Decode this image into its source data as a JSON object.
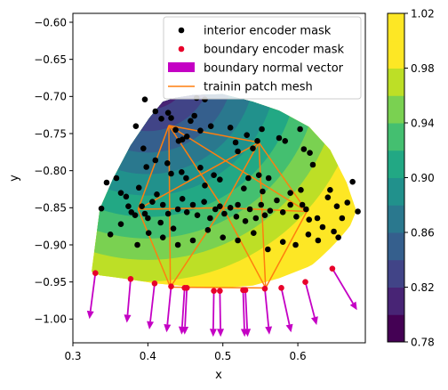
{
  "chart_data": {
    "type": "scatter",
    "xlabel": "x",
    "ylabel": "y",
    "xlim": [
      0.3,
      0.69
    ],
    "ylim": [
      -1.032,
      -0.588
    ],
    "xticks": [
      "0.3",
      "0.4",
      "0.5",
      "0.6"
    ],
    "xtick_values": [
      0.3,
      0.4,
      0.5,
      0.6
    ],
    "yticks": [
      "−0.60",
      "−0.65",
      "−0.70",
      "−0.75",
      "−0.80",
      "−0.85",
      "−0.90",
      "−0.95",
      "−1.00"
    ],
    "ytick_values": [
      -0.6,
      -0.65,
      -0.7,
      -0.75,
      -0.8,
      -0.85,
      -0.9,
      -0.95,
      -1.0
    ],
    "legend": {
      "placement": "upper right",
      "entries": [
        {
          "label": "interior encoder mask",
          "marker": "dot",
          "color": "#000000"
        },
        {
          "label": "boundary encoder mask",
          "marker": "dot",
          "color": "#e8002a"
        },
        {
          "label": "boundary normal vector",
          "marker": "rect",
          "color": "#c400c4"
        },
        {
          "label": "trainin patch mesh",
          "marker": "line",
          "color": "#ff7f0e"
        }
      ]
    },
    "colorbar": {
      "ticks": [
        "0.78",
        "0.82",
        "0.86",
        "0.90",
        "0.94",
        "0.98",
        "1.02"
      ],
      "tick_values": [
        0.78,
        0.82,
        0.86,
        0.9,
        0.94,
        0.98,
        1.02
      ],
      "min": 0.78,
      "max": 1.02,
      "levels": [
        0.78,
        0.8,
        0.82,
        0.84,
        0.86,
        0.88,
        0.9,
        0.92,
        0.94,
        0.96,
        0.98,
        1.0,
        1.02
      ],
      "colors": [
        "#440154",
        "#482475",
        "#414487",
        "#355f8d",
        "#2a788e",
        "#21918c",
        "#22a884",
        "#44bf70",
        "#7ad151",
        "#bddf26",
        "#fde725",
        "#fde725"
      ]
    },
    "contour_region": {
      "outline": [
        [
          0.325,
          -0.936
        ],
        [
          0.336,
          -0.851
        ],
        [
          0.353,
          -0.812
        ],
        [
          0.377,
          -0.766
        ],
        [
          0.402,
          -0.729
        ],
        [
          0.42,
          -0.707
        ],
        [
          0.436,
          -0.702
        ],
        [
          0.46,
          -0.698
        ],
        [
          0.5,
          -0.697
        ],
        [
          0.54,
          -0.707
        ],
        [
          0.575,
          -0.719
        ],
        [
          0.615,
          -0.741
        ],
        [
          0.643,
          -0.772
        ],
        [
          0.665,
          -0.816
        ],
        [
          0.678,
          -0.854
        ],
        [
          0.665,
          -0.886
        ],
        [
          0.646,
          -0.913
        ],
        [
          0.613,
          -0.93
        ],
        [
          0.575,
          -0.945
        ],
        [
          0.54,
          -0.955
        ],
        [
          0.5,
          -0.958
        ],
        [
          0.455,
          -0.956
        ],
        [
          0.41,
          -0.952
        ],
        [
          0.372,
          -0.946
        ],
        [
          0.336,
          -0.941
        ]
      ],
      "center": [
        0.4,
        -0.66
      ],
      "value_at_center": 0.78,
      "value_gradient_per_unit": 0.7
    },
    "series": [
      {
        "name": "interior encoder mask",
        "kind": "points",
        "color": "#000000",
        "points": [
          [
            0.396,
            -0.704
          ],
          [
            0.41,
            -0.72
          ],
          [
            0.418,
            -0.73
          ],
          [
            0.427,
            -0.722
          ],
          [
            0.431,
            -0.729
          ],
          [
            0.437,
            -0.745
          ],
          [
            0.441,
            -0.76
          ],
          [
            0.446,
            -0.758
          ],
          [
            0.452,
            -0.754
          ],
          [
            0.457,
            -0.733
          ],
          [
            0.462,
            -0.726
          ],
          [
            0.465,
            -0.702
          ],
          [
            0.476,
            -0.704
          ],
          [
            0.47,
            -0.746
          ],
          [
            0.484,
            -0.74
          ],
          [
            0.51,
            -0.742
          ],
          [
            0.517,
            -0.762
          ],
          [
            0.52,
            -0.774
          ],
          [
            0.532,
            -0.752
          ],
          [
            0.54,
            -0.77
          ],
          [
            0.546,
            -0.76
          ],
          [
            0.552,
            -0.744
          ],
          [
            0.575,
            -0.756
          ],
          [
            0.583,
            -0.76
          ],
          [
            0.603,
            -0.744
          ],
          [
            0.608,
            -0.771
          ],
          [
            0.616,
            -0.776
          ],
          [
            0.62,
            -0.792
          ],
          [
            0.384,
            -0.74
          ],
          [
            0.394,
            -0.77
          ],
          [
            0.398,
            -0.795
          ],
          [
            0.41,
            -0.786
          ],
          [
            0.426,
            -0.79
          ],
          [
            0.431,
            -0.804
          ],
          [
            0.445,
            -0.802
          ],
          [
            0.451,
            -0.81
          ],
          [
            0.47,
            -0.796
          ],
          [
            0.476,
            -0.82
          ],
          [
            0.488,
            -0.806
          ],
          [
            0.496,
            -0.812
          ],
          [
            0.528,
            -0.824
          ],
          [
            0.534,
            -0.81
          ],
          [
            0.548,
            -0.806
          ],
          [
            0.553,
            -0.828
          ],
          [
            0.561,
            -0.81
          ],
          [
            0.59,
            -0.83
          ],
          [
            0.604,
            -0.826
          ],
          [
            0.606,
            -0.846
          ],
          [
            0.611,
            -0.852
          ],
          [
            0.64,
            -0.836
          ],
          [
            0.643,
            -0.826
          ],
          [
            0.652,
            -0.848
          ],
          [
            0.659,
            -0.864
          ],
          [
            0.666,
            -0.843
          ],
          [
            0.673,
            -0.815
          ],
          [
            0.68,
            -0.855
          ],
          [
            0.338,
            -0.851
          ],
          [
            0.345,
            -0.816
          ],
          [
            0.358,
            -0.81
          ],
          [
            0.364,
            -0.83
          ],
          [
            0.371,
            -0.835
          ],
          [
            0.374,
            -0.848
          ],
          [
            0.378,
            -0.856
          ],
          [
            0.383,
            -0.86
          ],
          [
            0.388,
            -0.823
          ],
          [
            0.392,
            -0.848
          ],
          [
            0.396,
            -0.858
          ],
          [
            0.4,
            -0.864
          ],
          [
            0.406,
            -0.842
          ],
          [
            0.412,
            -0.832
          ],
          [
            0.417,
            -0.87
          ],
          [
            0.42,
            -0.846
          ],
          [
            0.427,
            -0.858
          ],
          [
            0.434,
            -0.878
          ],
          [
            0.44,
            -0.852
          ],
          [
            0.446,
            -0.838
          ],
          [
            0.452,
            -0.856
          ],
          [
            0.46,
            -0.846
          ],
          [
            0.466,
            -0.86
          ],
          [
            0.475,
            -0.842
          ],
          [
            0.483,
            -0.864
          ],
          [
            0.49,
            -0.852
          ],
          [
            0.496,
            -0.848
          ],
          [
            0.502,
            -0.858
          ],
          [
            0.51,
            -0.85
          ],
          [
            0.518,
            -0.862
          ],
          [
            0.52,
            -0.846
          ],
          [
            0.53,
            -0.868
          ],
          [
            0.536,
            -0.852
          ],
          [
            0.544,
            -0.864
          ],
          [
            0.551,
            -0.846
          ],
          [
            0.556,
            -0.86
          ],
          [
            0.563,
            -0.854
          ],
          [
            0.572,
            -0.84
          ],
          [
            0.58,
            -0.856
          ],
          [
            0.59,
            -0.846
          ],
          [
            0.598,
            -0.862
          ],
          [
            0.615,
            -0.866
          ],
          [
            0.626,
            -0.864
          ],
          [
            0.633,
            -0.876
          ],
          [
            0.35,
            -0.886
          ],
          [
            0.364,
            -0.872
          ],
          [
            0.386,
            -0.9
          ],
          [
            0.401,
            -0.884
          ],
          [
            0.42,
            -0.89
          ],
          [
            0.44,
            -0.9
          ],
          [
            0.46,
            -0.894
          ],
          [
            0.48,
            -0.88
          ],
          [
            0.5,
            -0.89
          ],
          [
            0.52,
            -0.894
          ],
          [
            0.541,
            -0.884
          ],
          [
            0.56,
            -0.906
          ],
          [
            0.58,
            -0.896
          ],
          [
            0.597,
            -0.9
          ],
          [
            0.614,
            -0.886
          ],
          [
            0.627,
            -0.894
          ],
          [
            0.648,
            -0.882
          ],
          [
            0.654,
            -0.89
          ]
        ]
      },
      {
        "name": "boundary encoder mask",
        "kind": "points",
        "color": "#e8002a",
        "points": [
          [
            0.33,
            -0.938
          ],
          [
            0.377,
            -0.946
          ],
          [
            0.409,
            -0.952
          ],
          [
            0.431,
            -0.956
          ],
          [
            0.449,
            -0.958
          ],
          [
            0.452,
            -0.958
          ],
          [
            0.488,
            -0.962
          ],
          [
            0.496,
            -0.962
          ],
          [
            0.527,
            -0.961
          ],
          [
            0.53,
            -0.961
          ],
          [
            0.556,
            -0.959
          ],
          [
            0.578,
            -0.958
          ],
          [
            0.61,
            -0.95
          ],
          [
            0.646,
            -0.932
          ]
        ]
      },
      {
        "name": "boundary normal vector",
        "kind": "arrows",
        "color": "#c400c4",
        "arrows": [
          [
            0.33,
            -0.938,
            0.322,
            -1.0
          ],
          [
            0.377,
            -0.946,
            0.372,
            -1.005
          ],
          [
            0.409,
            -0.952,
            0.402,
            -1.014
          ],
          [
            0.431,
            -0.956,
            0.425,
            -1.018
          ],
          [
            0.449,
            -0.958,
            0.445,
            -1.021
          ],
          [
            0.452,
            -0.958,
            0.449,
            -1.021
          ],
          [
            0.488,
            -0.962,
            0.487,
            -1.024
          ],
          [
            0.496,
            -0.962,
            0.497,
            -1.024
          ],
          [
            0.527,
            -0.961,
            0.529,
            -1.024
          ],
          [
            0.53,
            -0.961,
            0.533,
            -1.024
          ],
          [
            0.556,
            -0.959,
            0.562,
            -1.021
          ],
          [
            0.578,
            -0.958,
            0.591,
            -1.018
          ],
          [
            0.61,
            -0.95,
            0.625,
            -1.008
          ],
          [
            0.646,
            -0.932,
            0.679,
            -0.988
          ]
        ]
      },
      {
        "name": "trainin patch mesh",
        "kind": "segments",
        "color": "#ff7f0e",
        "segments": [
          [
            [
              0.428,
              -0.739
            ],
            [
              0.548,
              -0.762
            ]
          ],
          [
            [
              0.428,
              -0.739
            ],
            [
              0.387,
              -0.852
            ]
          ],
          [
            [
              0.428,
              -0.739
            ],
            [
              0.5,
              -0.85
            ]
          ],
          [
            [
              0.428,
              -0.739
            ],
            [
              0.43,
              -0.957
            ]
          ],
          [
            [
              0.548,
              -0.762
            ],
            [
              0.5,
              -0.85
            ]
          ],
          [
            [
              0.548,
              -0.762
            ],
            [
              0.612,
              -0.855
            ]
          ],
          [
            [
              0.548,
              -0.762
            ],
            [
              0.557,
              -0.958
            ]
          ],
          [
            [
              0.387,
              -0.852
            ],
            [
              0.5,
              -0.85
            ]
          ],
          [
            [
              0.5,
              -0.85
            ],
            [
              0.612,
              -0.855
            ]
          ],
          [
            [
              0.387,
              -0.852
            ],
            [
              0.43,
              -0.957
            ]
          ],
          [
            [
              0.43,
              -0.957
            ],
            [
              0.557,
              -0.958
            ]
          ],
          [
            [
              0.5,
              -0.85
            ],
            [
              0.43,
              -0.957
            ]
          ],
          [
            [
              0.5,
              -0.85
            ],
            [
              0.557,
              -0.958
            ]
          ],
          [
            [
              0.612,
              -0.855
            ],
            [
              0.557,
              -0.958
            ]
          ],
          [
            [
              0.428,
              -0.739
            ],
            [
              0.612,
              -0.855
            ]
          ],
          [
            [
              0.548,
              -0.762
            ],
            [
              0.387,
              -0.852
            ]
          ]
        ]
      }
    ]
  }
}
